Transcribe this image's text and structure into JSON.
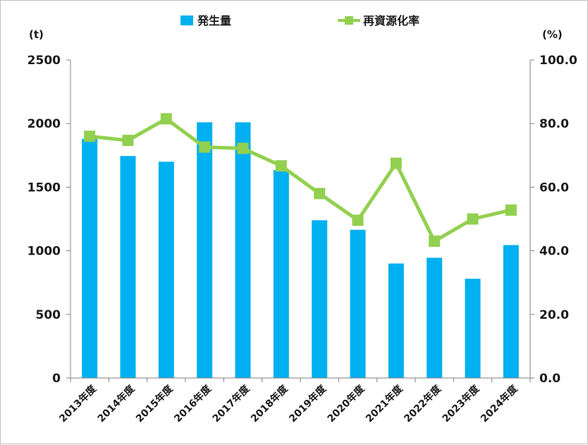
{
  "chart_data": {
    "type": "bar",
    "categories": [
      "2013年度",
      "2014年度",
      "2015年度",
      "2016年度",
      "2017年度",
      "2018年度",
      "2019年度",
      "2020年度",
      "2021年度",
      "2022年度",
      "2023年度",
      "2024年度"
    ],
    "series": [
      {
        "name": "発生量",
        "type": "bar",
        "axis": "left",
        "color": "#00b0f0",
        "values": [
          1880,
          1745,
          1700,
          2010,
          2010,
          1635,
          1240,
          1165,
          900,
          945,
          780,
          1045
        ]
      },
      {
        "name": "再資源化率",
        "type": "line",
        "axis": "right",
        "color": "#92d050",
        "values": [
          76.0,
          74.7,
          81.5,
          72.6,
          72.2,
          66.7,
          58.0,
          49.6,
          67.5,
          43.0,
          50.0,
          52.8
        ]
      }
    ],
    "y_left": {
      "unit": "(t)",
      "ylim": [
        0,
        2500
      ],
      "ticks": [
        "0",
        "500",
        "1000",
        "1500",
        "2000",
        "2500"
      ]
    },
    "y_right": {
      "unit": "(%)",
      "ylim": [
        0,
        100
      ],
      "ticks": [
        "0.0",
        "20.0",
        "40.0",
        "60.0",
        "80.0",
        "100.0"
      ]
    },
    "grid": false,
    "legend_position": "top-center"
  }
}
